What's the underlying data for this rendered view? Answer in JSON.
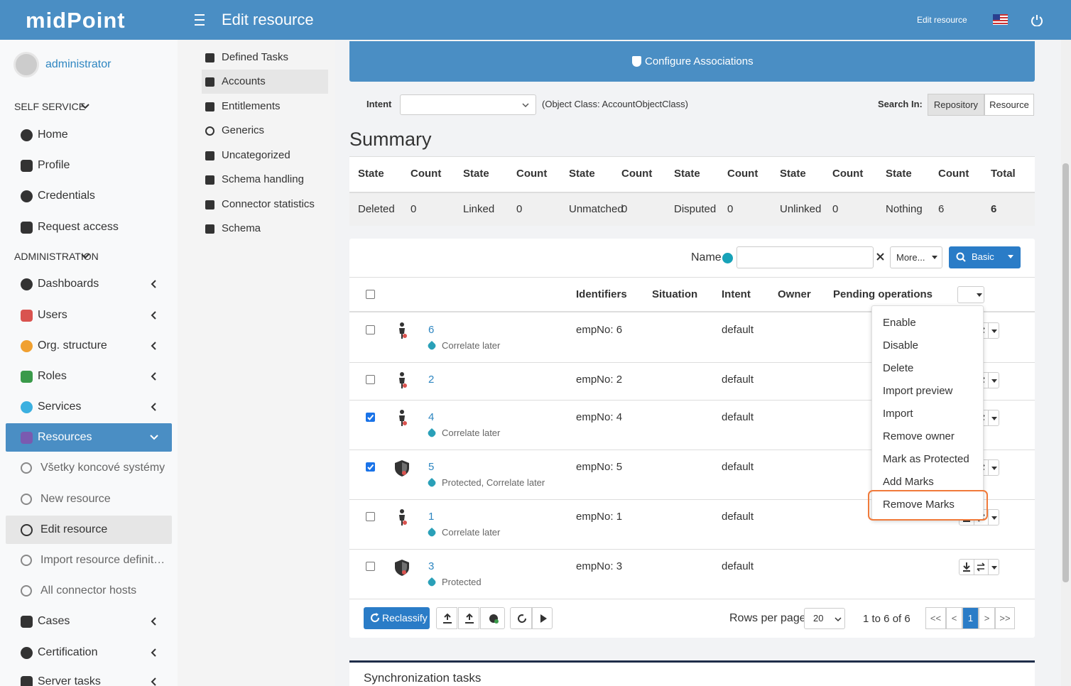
{
  "header": {
    "logo": "midPoint",
    "title": "Edit resource",
    "link": "Edit resource"
  },
  "sidebar": {
    "user": "administrator",
    "sections": [
      {
        "title": "SELF SERVICE",
        "items": [
          {
            "label": "Home"
          },
          {
            "label": "Profile"
          },
          {
            "label": "Credentials"
          },
          {
            "label": "Request access"
          }
        ]
      },
      {
        "title": "ADMINISTRATION",
        "items": [
          {
            "label": "Dashboards",
            "expandable": true
          },
          {
            "label": "Users",
            "expandable": true
          },
          {
            "label": "Org. structure",
            "expandable": true
          },
          {
            "label": "Roles",
            "expandable": true
          },
          {
            "label": "Services",
            "expandable": true
          },
          {
            "label": "Resources",
            "active": true
          },
          {
            "label": "Všetky koncové systémy",
            "sub": true
          },
          {
            "label": "New resource",
            "sub": true
          },
          {
            "label": "Edit resource",
            "sub": true,
            "selected": true
          },
          {
            "label": "Import resource definit…",
            "sub": true
          },
          {
            "label": "All connector hosts",
            "sub": true
          },
          {
            "label": "Cases",
            "expandable": true
          },
          {
            "label": "Certification",
            "expandable": true
          },
          {
            "label": "Server tasks",
            "expandable": true
          }
        ]
      }
    ]
  },
  "resource_menu": [
    {
      "label": "Defined Tasks"
    },
    {
      "label": "Accounts",
      "selected": true
    },
    {
      "label": "Entitlements"
    },
    {
      "label": "Generics"
    },
    {
      "label": "Uncategorized"
    },
    {
      "label": "Schema handling"
    },
    {
      "label": "Connector statistics"
    },
    {
      "label": "Schema"
    }
  ],
  "main": {
    "configure": "Configure Associations",
    "intent_label": "Intent",
    "object_class": "(Object Class: AccountObjectClass)",
    "search_in_label": "Search In:",
    "search_in": [
      {
        "label": "Repository",
        "selected": true
      },
      {
        "label": "Resource"
      }
    ],
    "summary": {
      "title": "Summary",
      "headers": [
        "State",
        "Count",
        "State",
        "Count",
        "State",
        "Count",
        "State",
        "Count",
        "State",
        "Count",
        "State",
        "Count",
        "Total"
      ],
      "row": [
        "Deleted",
        0,
        "Linked",
        0,
        "Unmatched",
        0,
        "Disputed",
        0,
        "Unlinked",
        0,
        "Nothing",
        6,
        6
      ]
    },
    "search": {
      "name_label": "Name",
      "more": "More...",
      "basic": "Basic"
    },
    "table": {
      "columns": [
        "Identifiers",
        "Situation",
        "Intent",
        "Owner",
        "Pending operations"
      ],
      "rows": [
        {
          "name": "6",
          "tags": "Correlate later",
          "identifiers": "empNo: 6",
          "intent": "default",
          "checked": false,
          "kind": "person"
        },
        {
          "name": "2",
          "identifiers": "empNo: 2",
          "intent": "default",
          "checked": false,
          "kind": "person"
        },
        {
          "name": "4",
          "tags": "Correlate later",
          "identifiers": "empNo: 4",
          "intent": "default",
          "checked": true,
          "kind": "person"
        },
        {
          "name": "5",
          "tags": "Protected, Correlate later",
          "identifiers": "empNo: 5",
          "intent": "default",
          "checked": true,
          "kind": "shield"
        },
        {
          "name": "1",
          "tags": "Correlate later",
          "identifiers": "empNo: 1",
          "intent": "default",
          "checked": false,
          "kind": "person"
        },
        {
          "name": "3",
          "tags": "Protected",
          "identifiers": "empNo: 3",
          "intent": "default",
          "checked": false,
          "kind": "shield"
        }
      ]
    },
    "dropdown": [
      {
        "label": "Enable"
      },
      {
        "label": "Disable"
      },
      {
        "label": "Delete"
      },
      {
        "label": "Import preview"
      },
      {
        "label": "Import"
      },
      {
        "label": "Remove owner"
      },
      {
        "label": "Mark as Protected"
      },
      {
        "label": "Add Marks"
      },
      {
        "label": "Remove Marks",
        "highlighted": true
      }
    ],
    "footer": {
      "reclassify": "Reclassify",
      "rows_per_page": "Rows per page",
      "page_size": "20",
      "range": "1 to 6 of 6",
      "pages": [
        {
          "label": "<<"
        },
        {
          "label": "<"
        },
        {
          "label": "1",
          "active": true
        },
        {
          "label": ">"
        },
        {
          "label": ">>"
        }
      ]
    },
    "sync_title": "Synchronization tasks"
  }
}
